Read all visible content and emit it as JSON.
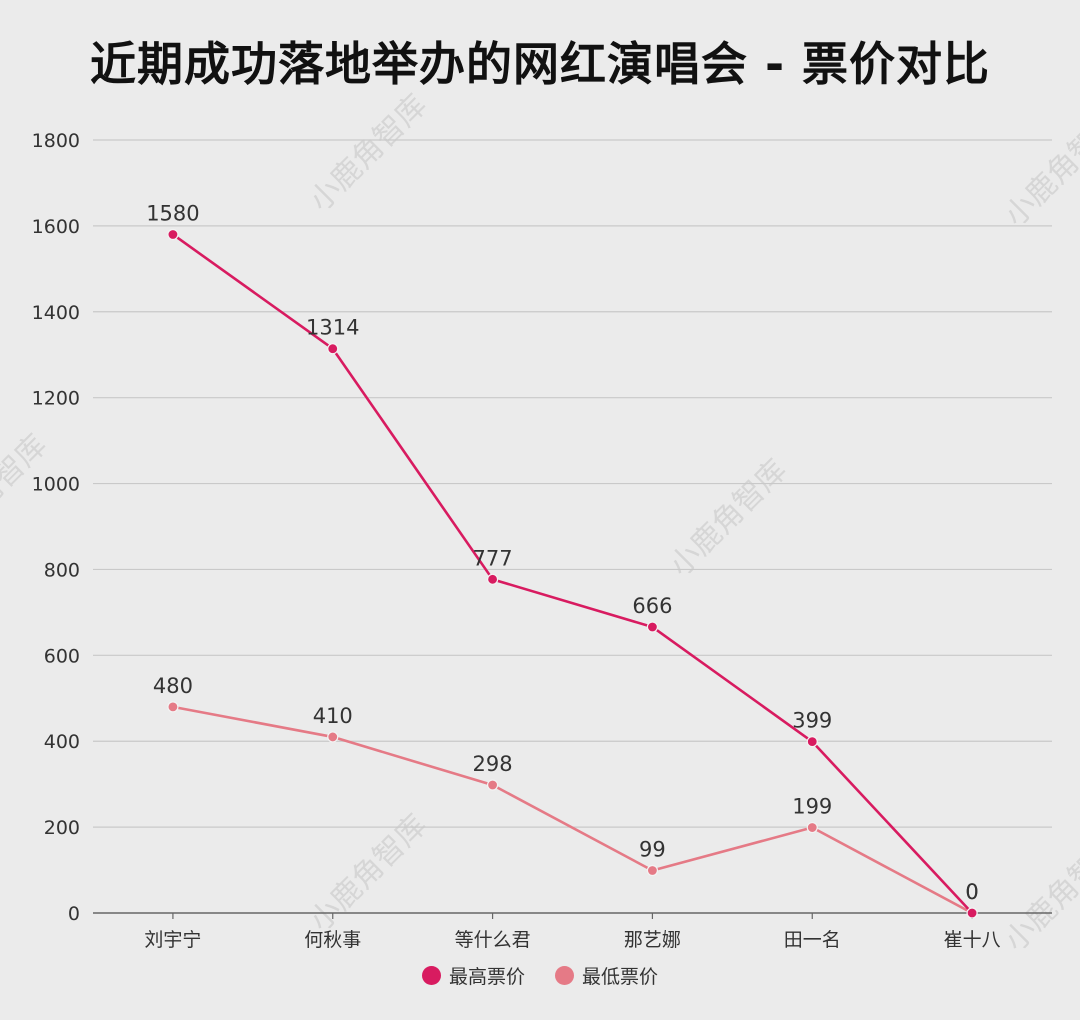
{
  "chart_data": {
    "type": "line",
    "title": "近期成功落地举办的网红演唱会 - 票价对比",
    "categories": [
      "刘宇宁",
      "何秋事",
      "等什么君",
      "那艺娜",
      "田一名",
      "崔十八"
    ],
    "series": [
      {
        "name": "最高票价",
        "values": [
          1580,
          1314,
          777,
          666,
          399,
          0
        ],
        "color": "#d81b60"
      },
      {
        "name": "最低票价",
        "values": [
          480,
          410,
          298,
          99,
          199,
          0
        ],
        "color": "#e57a86"
      }
    ],
    "ylim": [
      0,
      1800
    ],
    "yticks": [
      0,
      200,
      400,
      600,
      800,
      1000,
      1200,
      1400,
      1600,
      1800
    ],
    "grid": true,
    "legend_position": "bottom"
  },
  "watermark": "小鹿角智库"
}
